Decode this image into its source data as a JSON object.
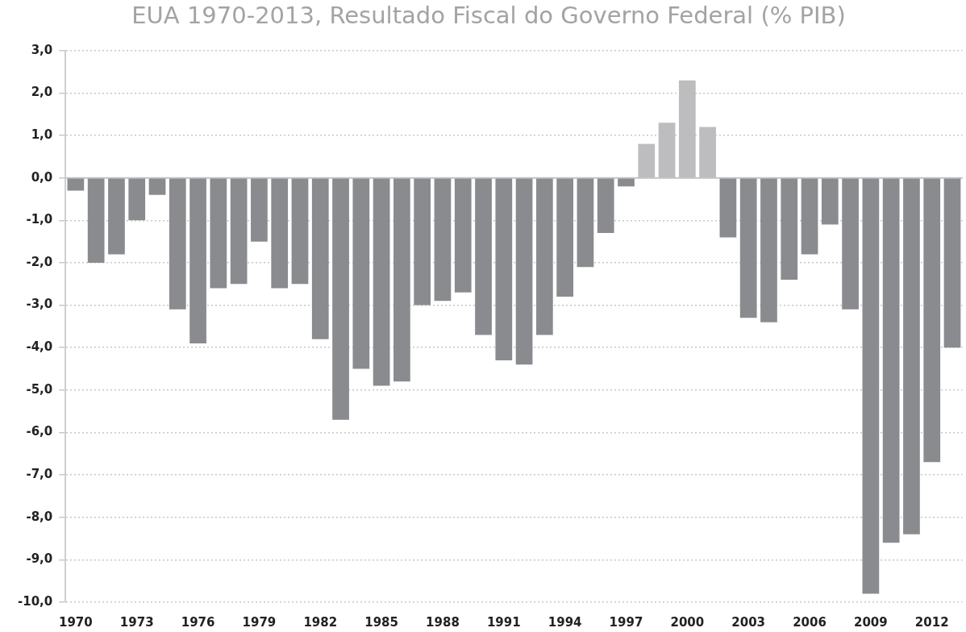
{
  "chart_data": {
    "type": "bar",
    "title": "EUA 1970-2013, Resultado Fiscal do Governo Federal (% PIB)",
    "categories": [
      "1970",
      null,
      null,
      "1973",
      null,
      null,
      "1976",
      null,
      null,
      "1979",
      null,
      null,
      "1982",
      null,
      null,
      "1985",
      null,
      null,
      "1988",
      null,
      null,
      "1991",
      null,
      null,
      "1994",
      null,
      null,
      "1997",
      null,
      null,
      "2000",
      null,
      null,
      "2003",
      null,
      null,
      "2006",
      null,
      null,
      "2009",
      null,
      null,
      "2012",
      null
    ],
    "values": [
      -0.3,
      -2.0,
      -1.8,
      -1.0,
      -0.4,
      -3.1,
      -3.9,
      -2.6,
      -2.5,
      -1.5,
      -2.6,
      -2.5,
      -3.8,
      -5.7,
      -4.5,
      -4.9,
      -4.8,
      -3.0,
      -2.9,
      -2.7,
      -3.7,
      -4.3,
      -4.4,
      -3.7,
      -2.8,
      -2.1,
      -1.3,
      -0.2,
      0.8,
      1.3,
      2.3,
      1.2,
      -1.4,
      -3.3,
      -3.4,
      -2.4,
      -1.8,
      -1.1,
      -3.1,
      -9.8,
      -8.6,
      -8.4,
      -6.7,
      -4.0
    ],
    "colors": [
      "#8a8b8f",
      "#8a8b8f",
      "#8a8b8f",
      "#8a8b8f",
      "#8a8b8f",
      "#8a8b8f",
      "#8a8b8f",
      "#8a8b8f",
      "#8a8b8f",
      "#8a8b8f",
      "#8a8b8f",
      "#8a8b8f",
      "#8a8b8f",
      "#8a8b8f",
      "#8a8b8f",
      "#8a8b8f",
      "#8a8b8f",
      "#8a8b8f",
      "#8a8b8f",
      "#8a8b8f",
      "#8a8b8f",
      "#8a8b8f",
      "#8a8b8f",
      "#8a8b8f",
      "#8a8b8f",
      "#8a8b8f",
      "#8a8b8f",
      "#8a8b8f",
      "#bdbdbf",
      "#bdbdbf",
      "#bdbdbf",
      "#bdbdbf",
      "#8a8b8f",
      "#8a8b8f",
      "#8a8b8f",
      "#8a8b8f",
      "#8a8b8f",
      "#8a8b8f",
      "#8a8b8f",
      "#8a8b8f",
      "#8a8b8f",
      "#8a8b8f",
      "#8a8b8f",
      "#8a8b8f"
    ],
    "ylim": [
      -10,
      3
    ],
    "yticks": [
      {
        "value": 3,
        "label": "3,0"
      },
      {
        "value": 2,
        "label": "2,0"
      },
      {
        "value": 1,
        "label": "1,0"
      },
      {
        "value": 0,
        "label": "0,0"
      },
      {
        "value": -1,
        "label": "-1,0"
      },
      {
        "value": -2,
        "label": "-2,0"
      },
      {
        "value": -3,
        "label": "-3,0"
      },
      {
        "value": -4,
        "label": "-4,0"
      },
      {
        "value": -5,
        "label": "-5,0"
      },
      {
        "value": -6,
        "label": "-6,0"
      },
      {
        "value": -7,
        "label": "-7,0"
      },
      {
        "value": -8,
        "label": "-8,0"
      },
      {
        "value": -9,
        "label": "-9,0"
      },
      {
        "value": -10,
        "label": "-10,0"
      }
    ],
    "grid": "y"
  }
}
